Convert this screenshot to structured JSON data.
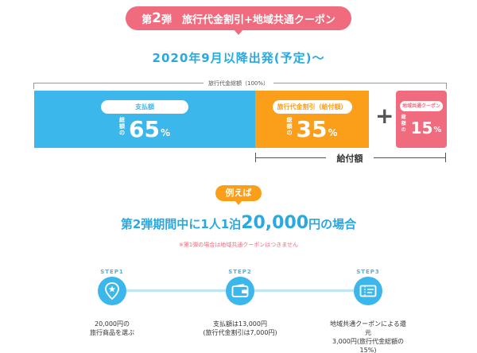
{
  "banner": {
    "num_prefix": "第",
    "num": "2",
    "rest": "弾　旅行代金割引+地域共通クーポン"
  },
  "subtitle": "2020年9月以降出発(予定)〜",
  "total_label": "旅行代金総額（100%）",
  "bars": {
    "payment": {
      "label": "支払額",
      "prefix": "総額の",
      "value": "65",
      "unit": "%"
    },
    "discount": {
      "label": "旅行代金割引（給付額）",
      "prefix": "総額の",
      "value": "35",
      "unit": "%"
    },
    "coupon": {
      "label": "地域共通クーポン",
      "prefix": "総額の",
      "value": "15",
      "unit": "%"
    }
  },
  "plus": "+",
  "grant_label": "給付額",
  "example_badge": "例えば",
  "case": {
    "before": "第2弾期間中に1人1泊",
    "amount": "20,000",
    "after": "円の場合"
  },
  "note": "※第1弾の場合は地域共通クーポンはつきません",
  "steps": [
    {
      "tag": "STEP1",
      "icon": "map-pin-star-icon",
      "line1": "20,000円の",
      "line2": "旅行商品を選ぶ"
    },
    {
      "tag": "STEP2",
      "icon": "wallet-icon",
      "line1": "支払額は13,000円",
      "line2": "(旅行代金割引は7,000円)"
    },
    {
      "tag": "STEP3",
      "icon": "coupon-ticket-icon",
      "line1": "地域共通クーポンによる還元",
      "line2": "3,000円(旅行代金総額の15%)"
    }
  ],
  "colors": {
    "blue": "#3cb7ec",
    "orange": "#fb9f1b",
    "pink": "#f16b7f",
    "title_blue": "#29a9e0"
  }
}
